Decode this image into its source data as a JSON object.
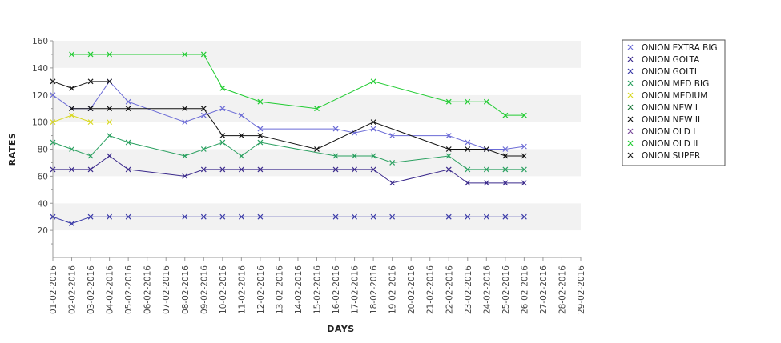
{
  "chart_data": {
    "type": "line",
    "xlabel": "DAYS",
    "ylabel": "RATES",
    "ylim": [
      0,
      160
    ],
    "yticks": [
      20,
      40,
      60,
      80,
      100,
      120,
      140,
      160
    ],
    "grid": "alternating horizontal bands",
    "legend_position": "right",
    "x": [
      "01-02-2016",
      "02-02-2016",
      "03-02-2016",
      "04-02-2016",
      "05-02-2016",
      "06-02-2016",
      "07-02-2016",
      "08-02-2016",
      "09-02-2016",
      "10-02-2016",
      "11-02-2016",
      "12-02-2016",
      "13-02-2016",
      "14-02-2016",
      "15-02-2016",
      "16-02-2016",
      "17-02-2016",
      "18-02-2016",
      "19-02-2016",
      "20-02-2016",
      "21-02-2016",
      "22-02-2016",
      "23-02-2016",
      "24-02-2016",
      "25-02-2016",
      "26-02-2016",
      "27-02-2016",
      "28-02-2016",
      "29-02-2016"
    ],
    "series": [
      {
        "name": "ONION EXTRA BIG",
        "color": "#6b6bd6",
        "values": [
          120,
          110,
          110,
          130,
          115,
          null,
          null,
          100,
          105,
          110,
          105,
          95,
          null,
          null,
          null,
          95,
          92,
          95,
          90,
          null,
          null,
          90,
          85,
          80,
          80,
          82,
          null,
          null,
          null
        ]
      },
      {
        "name": "ONION GOLTA",
        "color": "#3b2a8c",
        "values": [
          65,
          65,
          65,
          75,
          65,
          null,
          null,
          60,
          65,
          65,
          65,
          65,
          null,
          null,
          null,
          65,
          65,
          65,
          55,
          null,
          null,
          65,
          55,
          55,
          55,
          55,
          null,
          null,
          null
        ]
      },
      {
        "name": "ONION GOLTI",
        "color": "#3a3aa8",
        "values": [
          30,
          25,
          30,
          30,
          30,
          null,
          null,
          30,
          30,
          30,
          30,
          30,
          null,
          null,
          null,
          30,
          30,
          30,
          30,
          null,
          null,
          30,
          30,
          30,
          30,
          30,
          null,
          null,
          null
        ]
      },
      {
        "name": "ONION MED BIG",
        "color": "#2aa060",
        "values": [
          85,
          80,
          75,
          90,
          85,
          null,
          null,
          75,
          80,
          85,
          75,
          85,
          null,
          null,
          null,
          75,
          75,
          75,
          70,
          null,
          null,
          75,
          65,
          65,
          65,
          65,
          null,
          null,
          null
        ]
      },
      {
        "name": "ONION MEDIUM",
        "color": "#d8d820",
        "values": [
          100,
          105,
          100,
          100,
          null,
          null,
          null,
          null,
          null,
          null,
          null,
          null,
          null,
          null,
          null,
          null,
          null,
          null,
          null,
          null,
          null,
          null,
          null,
          null,
          null,
          null,
          null,
          null,
          null
        ]
      },
      {
        "name": "ONION NEW I",
        "color": "#1e7a3c",
        "values": [
          null,
          null,
          null,
          null,
          null,
          null,
          null,
          null,
          null,
          null,
          null,
          null,
          null,
          null,
          null,
          null,
          null,
          null,
          null,
          null,
          null,
          null,
          null,
          null,
          null,
          null,
          null,
          null,
          null
        ]
      },
      {
        "name": "ONION NEW II",
        "color": "#111111",
        "values": [
          null,
          110,
          110,
          110,
          110,
          null,
          null,
          110,
          110,
          90,
          90,
          90,
          null,
          null,
          80,
          null,
          null,
          100,
          null,
          null,
          null,
          80,
          80,
          80,
          75,
          75,
          null,
          null,
          null
        ]
      },
      {
        "name": "ONION OLD I",
        "color": "#7a4a9a",
        "values": [
          null,
          null,
          null,
          null,
          null,
          null,
          null,
          null,
          null,
          null,
          null,
          null,
          null,
          null,
          null,
          null,
          null,
          null,
          null,
          null,
          null,
          null,
          null,
          null,
          null,
          null,
          null,
          null,
          null
        ]
      },
      {
        "name": "ONION OLD II",
        "color": "#22cc33",
        "values": [
          null,
          150,
          150,
          150,
          null,
          null,
          null,
          150,
          150,
          125,
          null,
          115,
          null,
          null,
          110,
          null,
          null,
          130,
          null,
          null,
          null,
          115,
          115,
          115,
          105,
          105,
          null,
          null,
          null
        ]
      },
      {
        "name": "ONION SUPER",
        "color": "#1a1a1a",
        "values": [
          130,
          125,
          130,
          130,
          null,
          null,
          null,
          null,
          null,
          null,
          null,
          null,
          null,
          null,
          null,
          null,
          null,
          null,
          null,
          null,
          null,
          null,
          null,
          null,
          null,
          null,
          null,
          null,
          null
        ]
      }
    ]
  }
}
